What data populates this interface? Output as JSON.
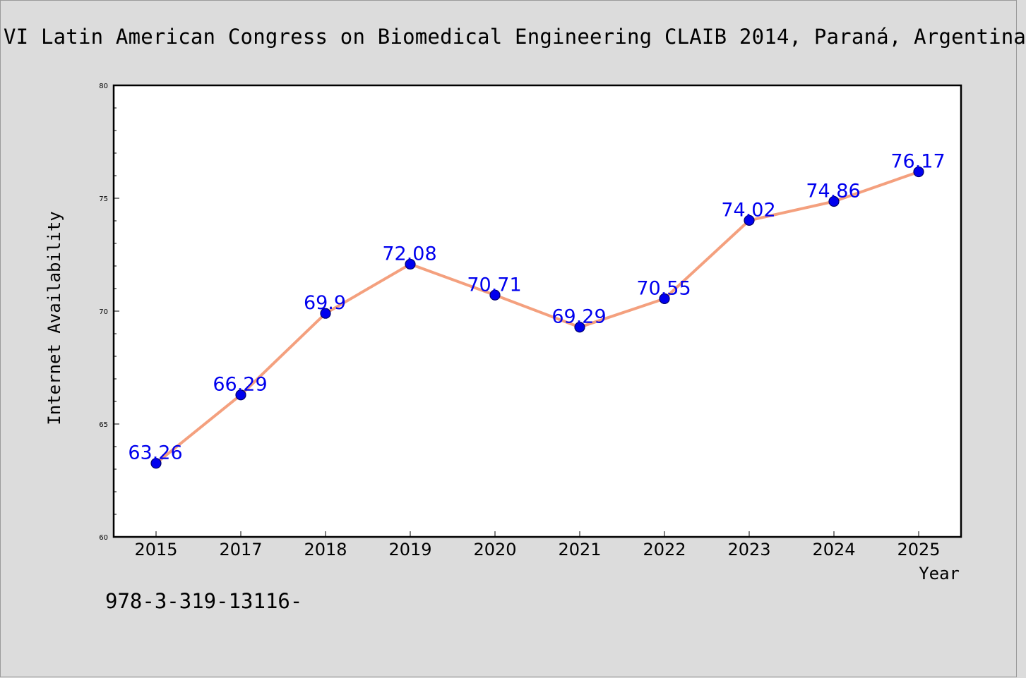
{
  "header": {
    "text": "VI Latin American Congress on Biomedical Engineering CLAIB 2014, Paraná, Argentina"
  },
  "footer": {
    "text": "978-3-319-13116-"
  },
  "chart_data": {
    "type": "line",
    "title": "",
    "xlabel": "Year",
    "ylabel": "Internet Availability",
    "categories": [
      "2015",
      "2017",
      "2018",
      "2019",
      "2020",
      "2021",
      "2022",
      "2023",
      "2024",
      "2025"
    ],
    "series": [
      {
        "values": [
          63.26,
          66.29,
          69.9,
          72.08,
          70.71,
          69.29,
          70.55,
          74.02,
          74.86,
          76.17
        ],
        "labels": [
          "63.26",
          "66.29",
          "69.9",
          "72.08",
          "70.71",
          "69.29",
          "70.55",
          "74.02",
          "74.86",
          "76.17"
        ],
        "line_color": "#f4a07e",
        "marker_color": "#0000ee"
      }
    ],
    "ylim": [
      60,
      80
    ],
    "yticks": [
      "60",
      "65",
      "70",
      "75",
      "80"
    ],
    "grid": false,
    "legend": "none"
  }
}
